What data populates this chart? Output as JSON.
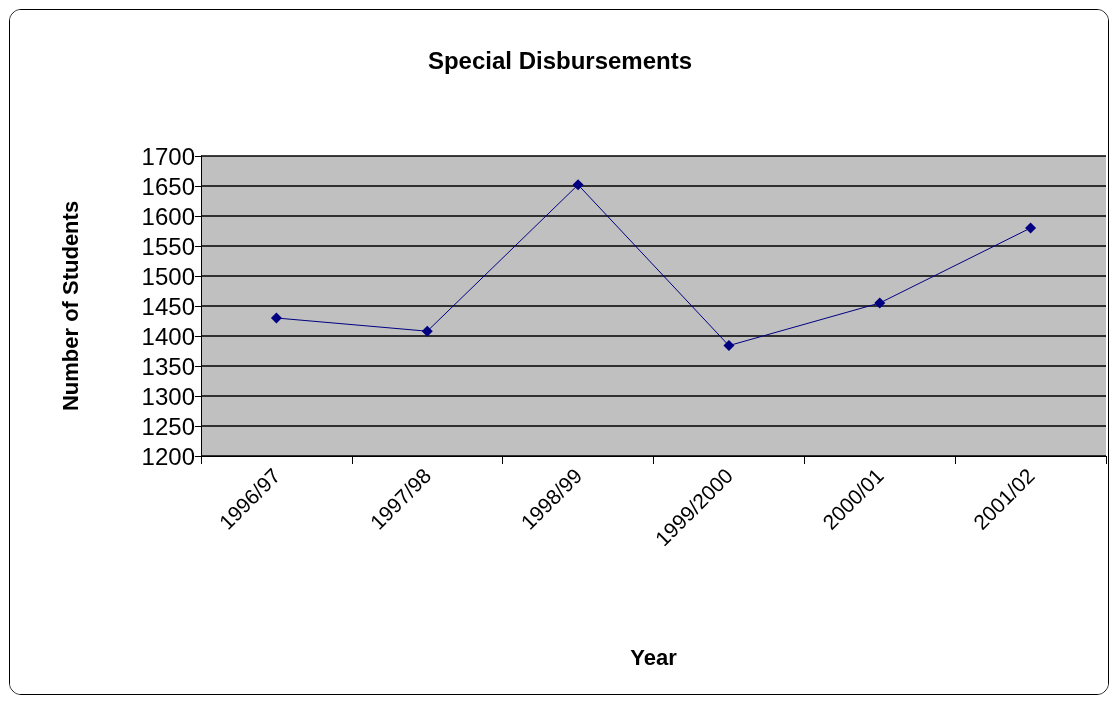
{
  "chart_data": {
    "type": "line",
    "title": "Special Disbursements",
    "xlabel": "Year",
    "ylabel": "Number of Students",
    "categories": [
      "1996/97",
      "1997/98",
      "1998/99",
      "1999/2000",
      "2000/01",
      "2001/02"
    ],
    "series": [
      {
        "color": "#000080",
        "values": [
          1430,
          1408,
          1652,
          1384,
          1455,
          1580
        ]
      }
    ],
    "ylim": [
      1200,
      1700
    ],
    "yticks": [
      1200,
      1250,
      1300,
      1350,
      1400,
      1450,
      1500,
      1550,
      1600,
      1650,
      1700
    ],
    "grid": "y",
    "marker": "diamond",
    "line_style": "solid"
  }
}
